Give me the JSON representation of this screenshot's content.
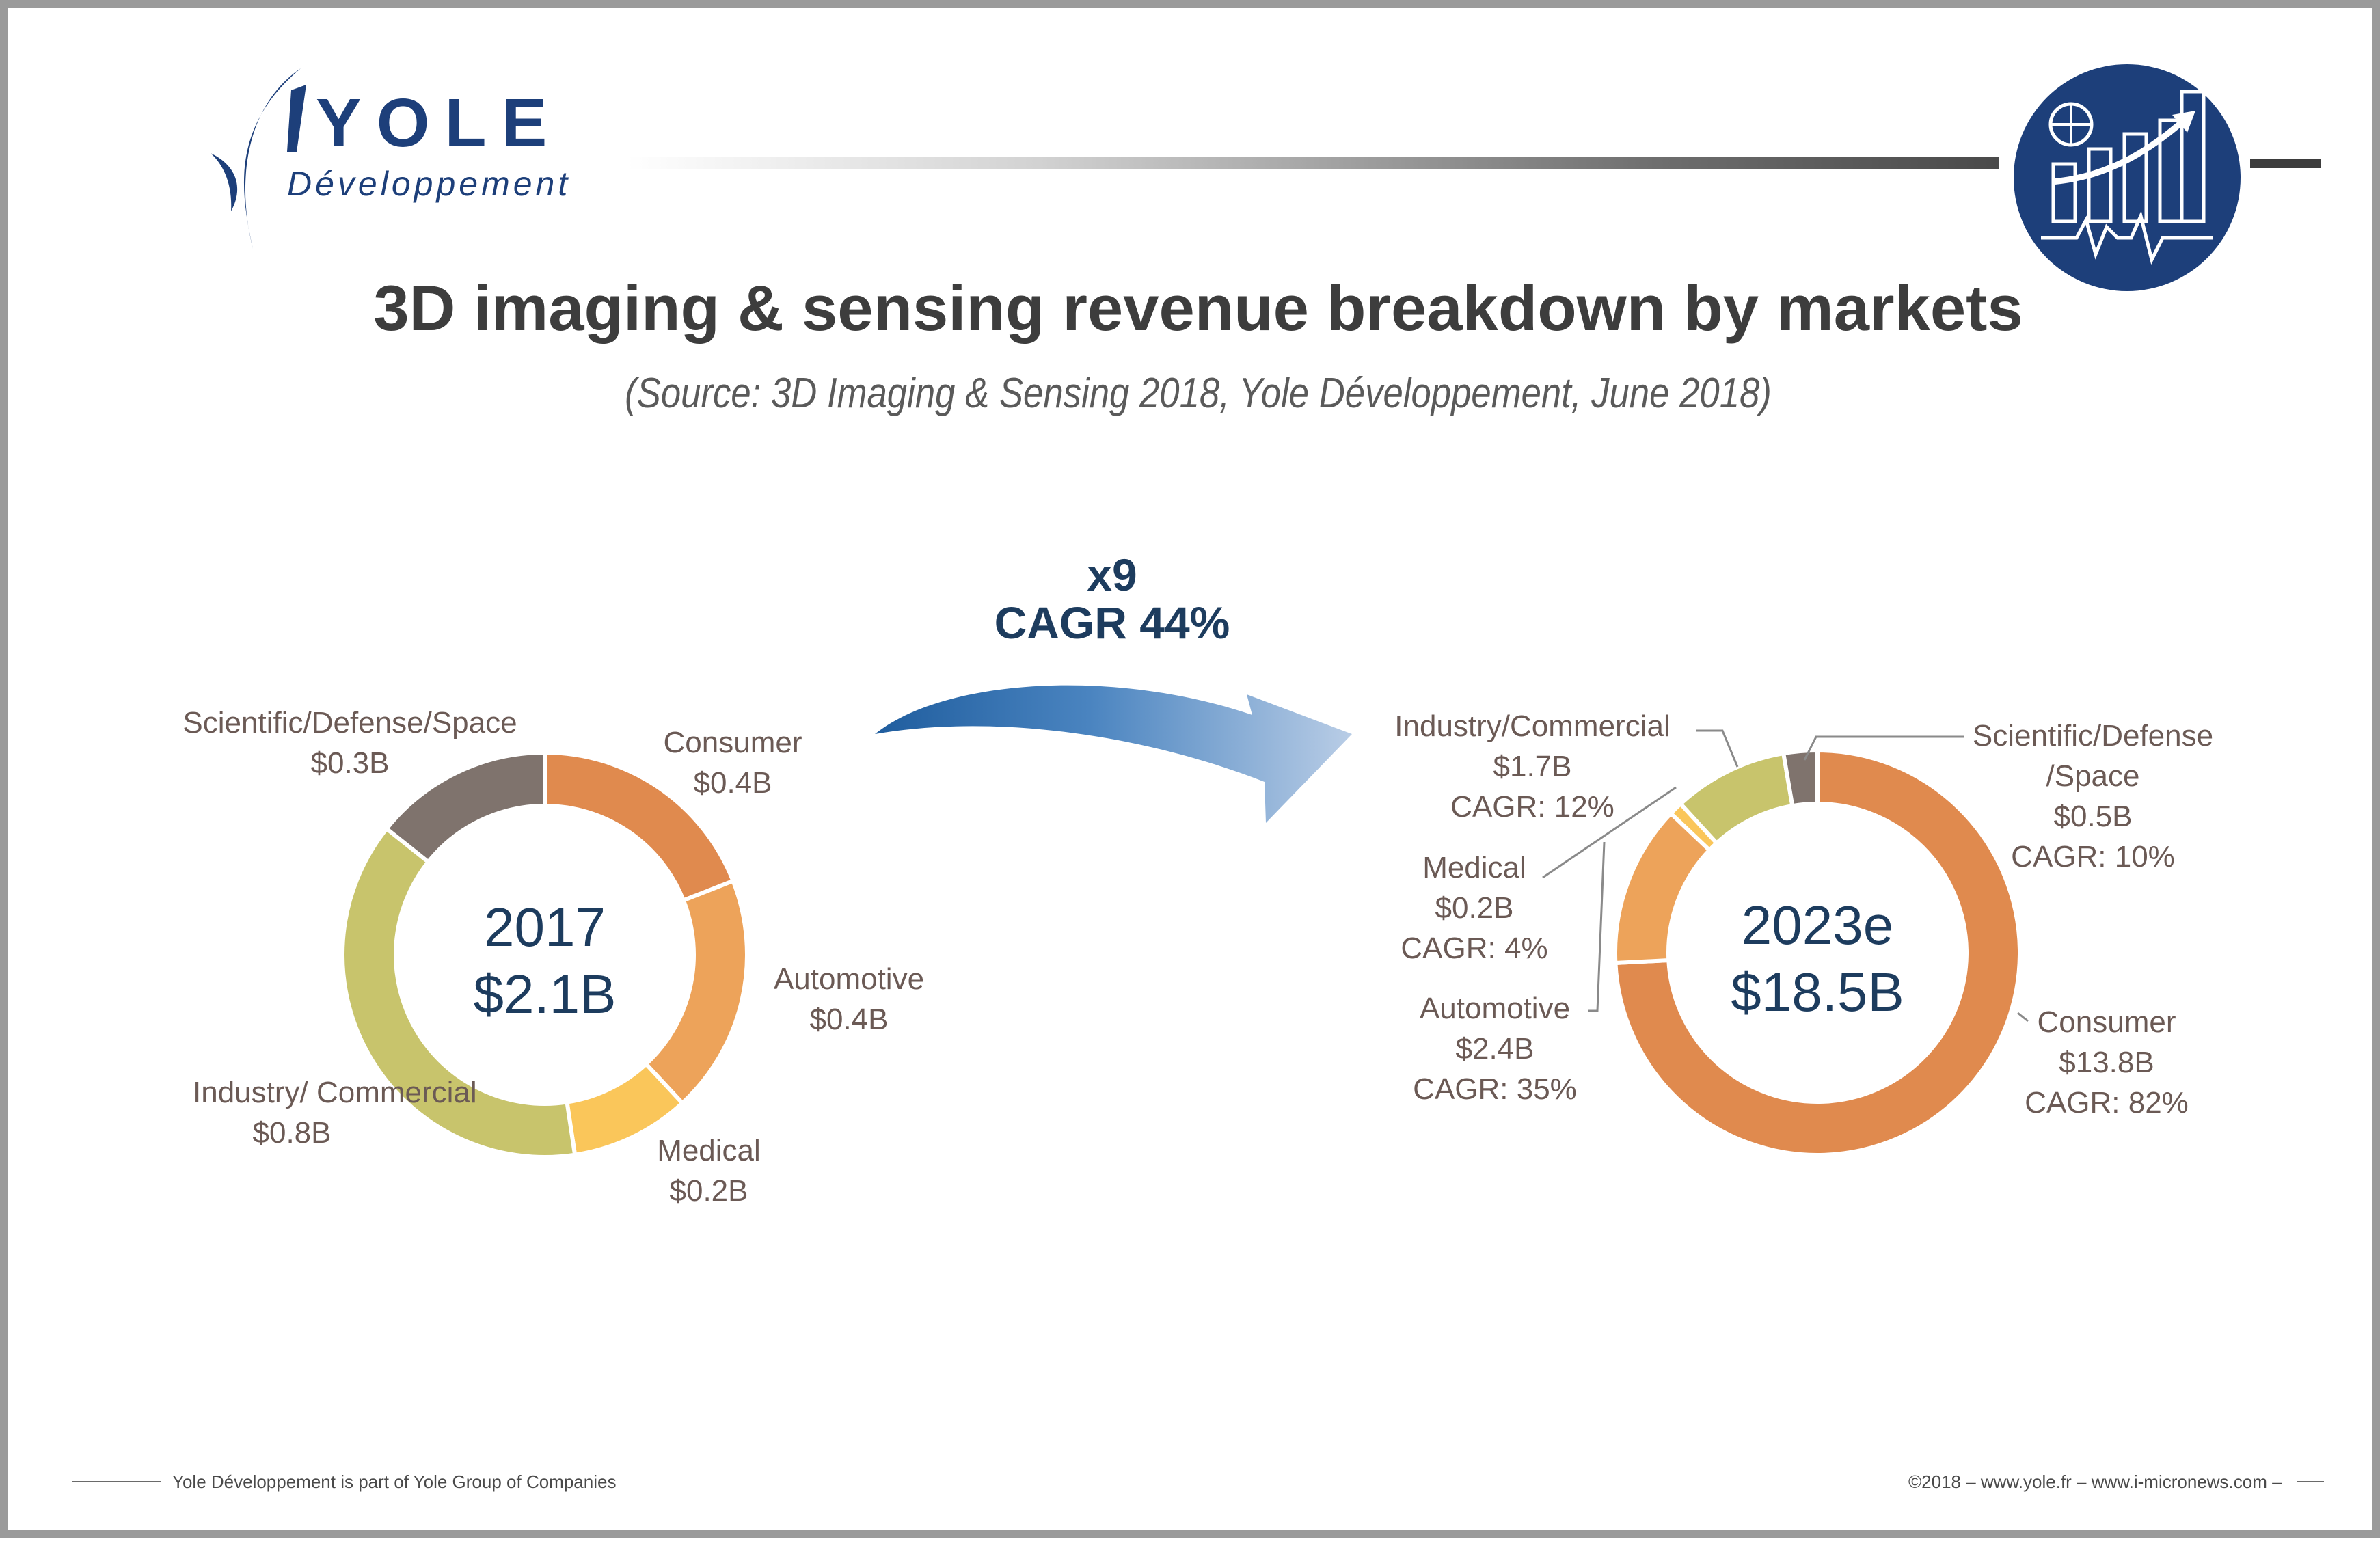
{
  "branding": {
    "logo_word": "YOLE",
    "logo_sub": "Développement",
    "logo_color": "#1d3f7a",
    "badge_icon": "chart-growth-badge-icon"
  },
  "header": {
    "title": "3D imaging & sensing revenue breakdown by markets",
    "subtitle": "(Source: 3D Imaging & Sensing 2018, Yole Développement, June 2018)"
  },
  "growth": {
    "multiplier": "x9",
    "cagr": "CAGR 44%",
    "arrow_icon": "curved-arrow-icon"
  },
  "chart_data": [
    {
      "type": "pie",
      "variant": "donut",
      "center_year": "2017",
      "center_total": "$2.1B",
      "total": 2.1,
      "unit": "$B",
      "slices": [
        {
          "label": "Consumer",
          "value": 0.4,
          "value_label": "$0.4B",
          "color": "#e08a4e"
        },
        {
          "label": "Automotive",
          "value": 0.4,
          "value_label": "$0.4B",
          "color": "#eda35a"
        },
        {
          "label": "Medical",
          "value": 0.2,
          "value_label": "$0.2B",
          "color": "#fac65a"
        },
        {
          "label": "Industry/ Commercial",
          "value": 0.8,
          "value_label": "$0.8B",
          "color": "#c8c46c"
        },
        {
          "label": "Scientific/Defense/Space",
          "value": 0.3,
          "value_label": "$0.3B",
          "color": "#7f736d"
        }
      ]
    },
    {
      "type": "pie",
      "variant": "donut",
      "center_year": "2023e",
      "center_total": "$18.5B",
      "total": 18.5,
      "unit": "$B",
      "slices": [
        {
          "label": "Consumer",
          "value": 13.8,
          "value_label": "$13.8B",
          "cagr": "CAGR: 82%",
          "color": "#e08a4e"
        },
        {
          "label": "Automotive",
          "value": 2.4,
          "value_label": "$2.4B",
          "cagr": "CAGR: 35%",
          "color": "#eda35a"
        },
        {
          "label": "Medical",
          "value": 0.2,
          "value_label": "$0.2B",
          "cagr": "CAGR: 4%",
          "color": "#fac65a"
        },
        {
          "label": "Industry/Commercial",
          "value": 1.7,
          "value_label": "$1.7B",
          "cagr": "CAGR: 12%",
          "color": "#c8c46c"
        },
        {
          "label": "Scientific/Defense /Space",
          "value": 0.5,
          "value_label": "$0.5B",
          "cagr": "CAGR: 10%",
          "color": "#7f736d"
        }
      ]
    }
  ],
  "footer": {
    "left": "Yole Développement is part of Yole Group of Companies",
    "right": "©2018 – www.yole.fr – www.i-micronews.com –"
  }
}
